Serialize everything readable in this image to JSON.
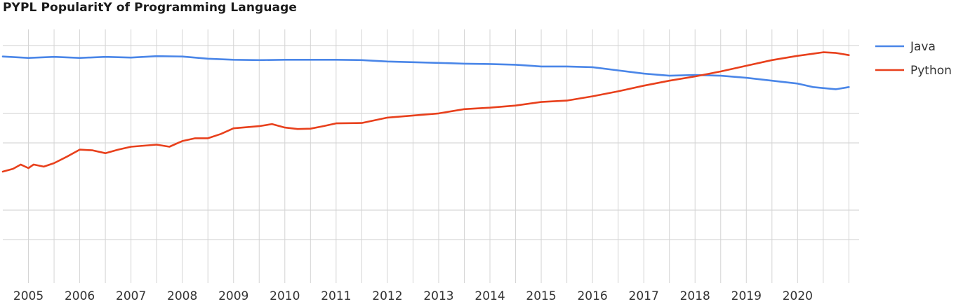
{
  "chart_data": {
    "type": "line",
    "title": "PYPL PopularitY of Programming Language",
    "xlabel": "",
    "ylabel": "",
    "x_ticks": [
      "2005",
      "2006",
      "2007",
      "2008",
      "2009",
      "2010",
      "2011",
      "2012",
      "2013",
      "2014",
      "2015",
      "2016",
      "2017",
      "2018",
      "2019",
      "2020"
    ],
    "xlim": [
      2004.5,
      2021.2
    ],
    "ylim": [
      0,
      35
    ],
    "grid": true,
    "legend_position": "right",
    "series": [
      {
        "name": "Java",
        "color": "#4a86e8",
        "points": [
          [
            2004.5,
            30.0
          ],
          [
            2005.0,
            29.8
          ],
          [
            2005.5,
            29.95
          ],
          [
            2006.0,
            29.8
          ],
          [
            2006.5,
            29.95
          ],
          [
            2007.0,
            29.85
          ],
          [
            2007.5,
            30.05
          ],
          [
            2008.0,
            30.0
          ],
          [
            2008.5,
            29.7
          ],
          [
            2009.0,
            29.55
          ],
          [
            2009.5,
            29.5
          ],
          [
            2010.0,
            29.55
          ],
          [
            2010.5,
            29.55
          ],
          [
            2011.0,
            29.55
          ],
          [
            2011.5,
            29.5
          ],
          [
            2012.0,
            29.3
          ],
          [
            2012.5,
            29.2
          ],
          [
            2013.0,
            29.1
          ],
          [
            2013.5,
            29.0
          ],
          [
            2014.0,
            28.95
          ],
          [
            2014.5,
            28.85
          ],
          [
            2015.0,
            28.6
          ],
          [
            2015.5,
            28.6
          ],
          [
            2016.0,
            28.5
          ],
          [
            2016.5,
            28.05
          ],
          [
            2017.0,
            27.6
          ],
          [
            2017.5,
            27.3
          ],
          [
            2018.0,
            27.4
          ],
          [
            2018.5,
            27.3
          ],
          [
            2019.0,
            27.0
          ],
          [
            2019.5,
            26.6
          ],
          [
            2020.0,
            26.2
          ],
          [
            2020.3,
            25.7
          ],
          [
            2020.6,
            25.5
          ],
          [
            2020.75,
            25.4
          ],
          [
            2021.0,
            25.7
          ]
        ]
      },
      {
        "name": "Python",
        "color": "#e8401c",
        "points": [
          [
            2004.5,
            13.8
          ],
          [
            2004.7,
            14.2
          ],
          [
            2004.85,
            14.8
          ],
          [
            2005.0,
            14.3
          ],
          [
            2005.1,
            14.8
          ],
          [
            2005.3,
            14.5
          ],
          [
            2005.5,
            15.0
          ],
          [
            2005.75,
            15.9
          ],
          [
            2006.0,
            16.9
          ],
          [
            2006.25,
            16.8
          ],
          [
            2006.5,
            16.4
          ],
          [
            2006.75,
            16.9
          ],
          [
            2007.0,
            17.3
          ],
          [
            2007.5,
            17.6
          ],
          [
            2007.75,
            17.3
          ],
          [
            2008.0,
            18.1
          ],
          [
            2008.25,
            18.5
          ],
          [
            2008.5,
            18.5
          ],
          [
            2008.75,
            19.1
          ],
          [
            2009.0,
            19.9
          ],
          [
            2009.5,
            20.2
          ],
          [
            2009.75,
            20.5
          ],
          [
            2010.0,
            20.0
          ],
          [
            2010.25,
            19.8
          ],
          [
            2010.5,
            19.85
          ],
          [
            2010.75,
            20.2
          ],
          [
            2011.0,
            20.6
          ],
          [
            2011.5,
            20.65
          ],
          [
            2012.0,
            21.4
          ],
          [
            2012.5,
            21.7
          ],
          [
            2013.0,
            22.0
          ],
          [
            2013.5,
            22.6
          ],
          [
            2014.0,
            22.8
          ],
          [
            2014.5,
            23.1
          ],
          [
            2015.0,
            23.6
          ],
          [
            2015.5,
            23.8
          ],
          [
            2016.0,
            24.4
          ],
          [
            2016.5,
            25.1
          ],
          [
            2017.0,
            25.9
          ],
          [
            2017.5,
            26.6
          ],
          [
            2018.0,
            27.2
          ],
          [
            2018.5,
            27.9
          ],
          [
            2019.0,
            28.7
          ],
          [
            2019.5,
            29.5
          ],
          [
            2020.0,
            30.1
          ],
          [
            2020.3,
            30.4
          ],
          [
            2020.5,
            30.6
          ],
          [
            2020.75,
            30.5
          ],
          [
            2021.0,
            30.2
          ]
        ]
      }
    ]
  }
}
